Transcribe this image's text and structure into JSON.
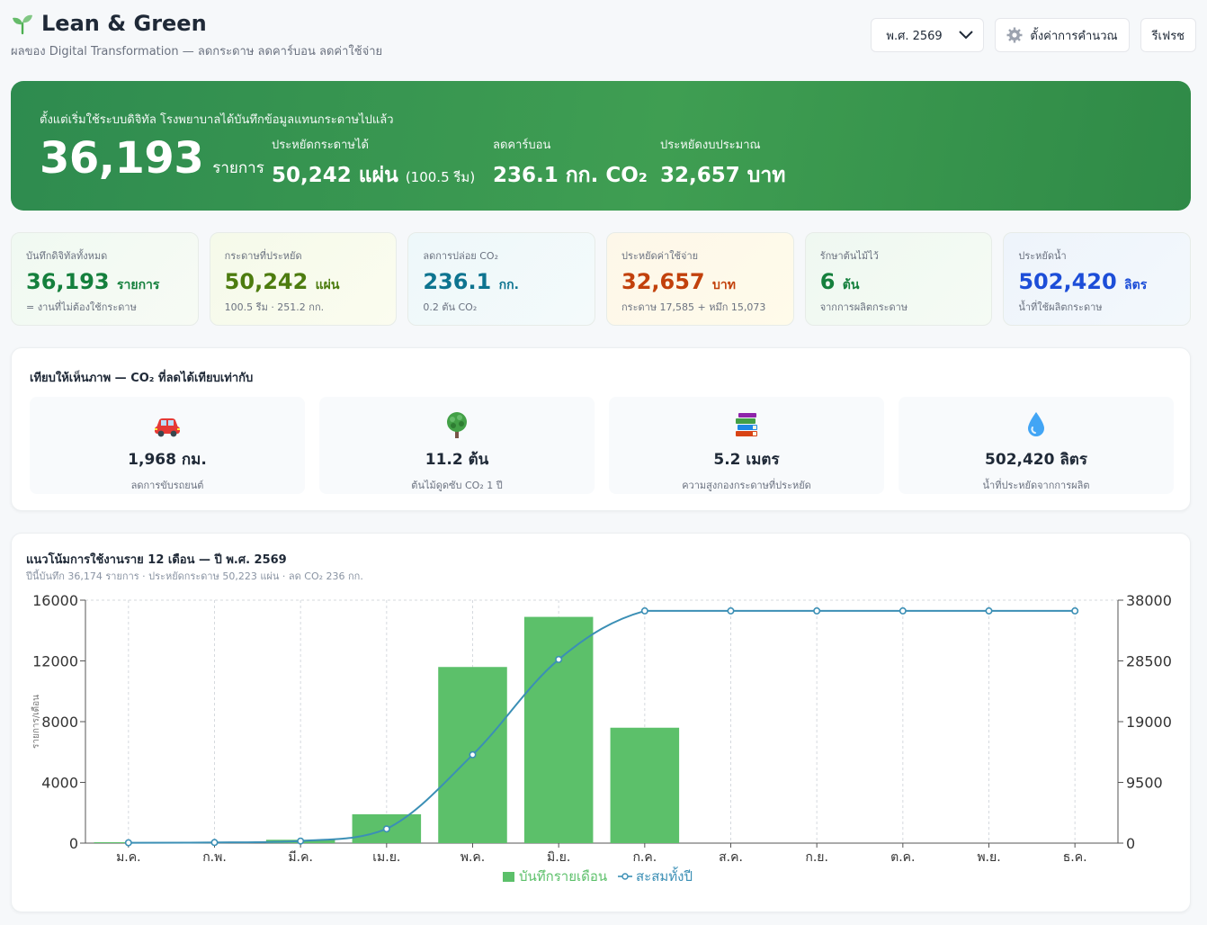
{
  "header": {
    "title": "Lean & Green",
    "subtitle": "ผลของ Digital Transformation — ลดกระดาษ ลดคาร์บอน ลดค่าใช้จ่าย",
    "year_select": "พ.ศ. 2569",
    "settings_label": "ตั้งค่าการคำนวณ",
    "refresh_label": "รีเฟรช"
  },
  "hero": {
    "lead": "ตั้งแต่เริ่มใช้ระบบดิจิทัล โรงพยาบาลได้บันทึกข้อมูลแทนกระดาษไปแล้ว",
    "records": "36,193",
    "records_unit": "รายการ",
    "paper_label": "ประหยัดกระดาษได้",
    "paper_value": "50,242 แผ่น",
    "paper_note": "(100.5 รีม)",
    "carbon_label": "ลดคาร์บอน",
    "carbon_value": "236.1 กก. CO₂",
    "money_label": "ประหยัดงบประมาณ",
    "money_value": "32,657 บาท"
  },
  "cards": [
    {
      "label": "บันทึกดิจิทัลทั้งหมด",
      "value": "36,193",
      "unit": "รายการ",
      "sub": "= งานที่ไม่ต้องใช้กระดาษ",
      "color": "#15803d"
    },
    {
      "label": "กระดาษที่ประหยัด",
      "value": "50,242",
      "unit": "แผ่น",
      "sub": "100.5 รีม · 251.2 กก.",
      "color": "#4d7c0f"
    },
    {
      "label": "ลดการปล่อย CO₂",
      "value": "236.1",
      "unit": "กก.",
      "sub": "0.2 ตัน CO₂",
      "color": "#0e7490"
    },
    {
      "label": "ประหยัดค่าใช้จ่าย",
      "value": "32,657",
      "unit": "บาท",
      "sub": "กระดาษ 17,585 + หมึก 15,073",
      "color": "#c2410c"
    },
    {
      "label": "รักษาต้นไม้ไว้",
      "value": "6",
      "unit": "ต้น",
      "sub": "จากการผลิตกระดาษ",
      "color": "#15803d"
    },
    {
      "label": "ประหยัดน้ำ",
      "value": "502,420",
      "unit": "ลิตร",
      "sub": "น้ำที่ใช้ผลิตกระดาษ",
      "color": "#1d4ed8"
    }
  ],
  "compare": {
    "title": "เทียบให้เห็นภาพ — CO₂ ที่ลดได้เทียบเท่ากับ",
    "tiles": [
      {
        "icon": "car-icon",
        "value": "1,968 กม.",
        "sub": "ลดการขับรถยนต์"
      },
      {
        "icon": "tree-icon",
        "value": "11.2 ต้น",
        "sub": "ต้นไม้ดูดซับ CO₂ 1 ปี"
      },
      {
        "icon": "books-icon",
        "value": "5.2 เมตร",
        "sub": "ความสูงกองกระดาษที่ประหยัด"
      },
      {
        "icon": "water-drop-icon",
        "value": "502,420 ลิตร",
        "sub": "น้ำที่ประหยัดจากการผลิต"
      }
    ]
  },
  "chart": {
    "title": "แนวโน้มการใช้งานราย 12 เดือน — ปี พ.ศ. 2569",
    "subtitle": "ปีนี้บันทึก 36,174 รายการ · ประหยัดกระดาษ 50,223 แผ่น · ลด CO₂ 236 กก."
  },
  "chart_data": {
    "type": "bar",
    "categories": [
      "ม.ค.",
      "ก.พ.",
      "มี.ค.",
      "เม.ย.",
      "พ.ค.",
      "มิ.ย.",
      "ก.ค.",
      "ส.ค.",
      "ก.ย.",
      "ต.ค.",
      "พ.ย.",
      "ธ.ค."
    ],
    "series": [
      {
        "name": "บันทึกรายเดือน",
        "type": "bar",
        "axis": "left",
        "color": "#5cc06a",
        "values": [
          60,
          40,
          220,
          1900,
          11600,
          14900,
          7600,
          0,
          0,
          0,
          0,
          0
        ]
      },
      {
        "name": "สะสมทั้งปี",
        "type": "line",
        "axis": "right",
        "color": "#3b8fb5",
        "values": [
          60,
          100,
          320,
          2220,
          13820,
          28720,
          36320,
          36320,
          36320,
          36320,
          36320,
          36320
        ]
      }
    ],
    "ylabel": "รายการ/เดือน",
    "ylim": [
      0,
      16000
    ],
    "yticks": [
      0,
      4000,
      8000,
      12000,
      16000
    ],
    "y2lim": [
      0,
      38000
    ],
    "y2ticks": [
      0,
      9500,
      19000,
      28500,
      38000
    ],
    "legend": "bottom-center",
    "grid": true
  }
}
